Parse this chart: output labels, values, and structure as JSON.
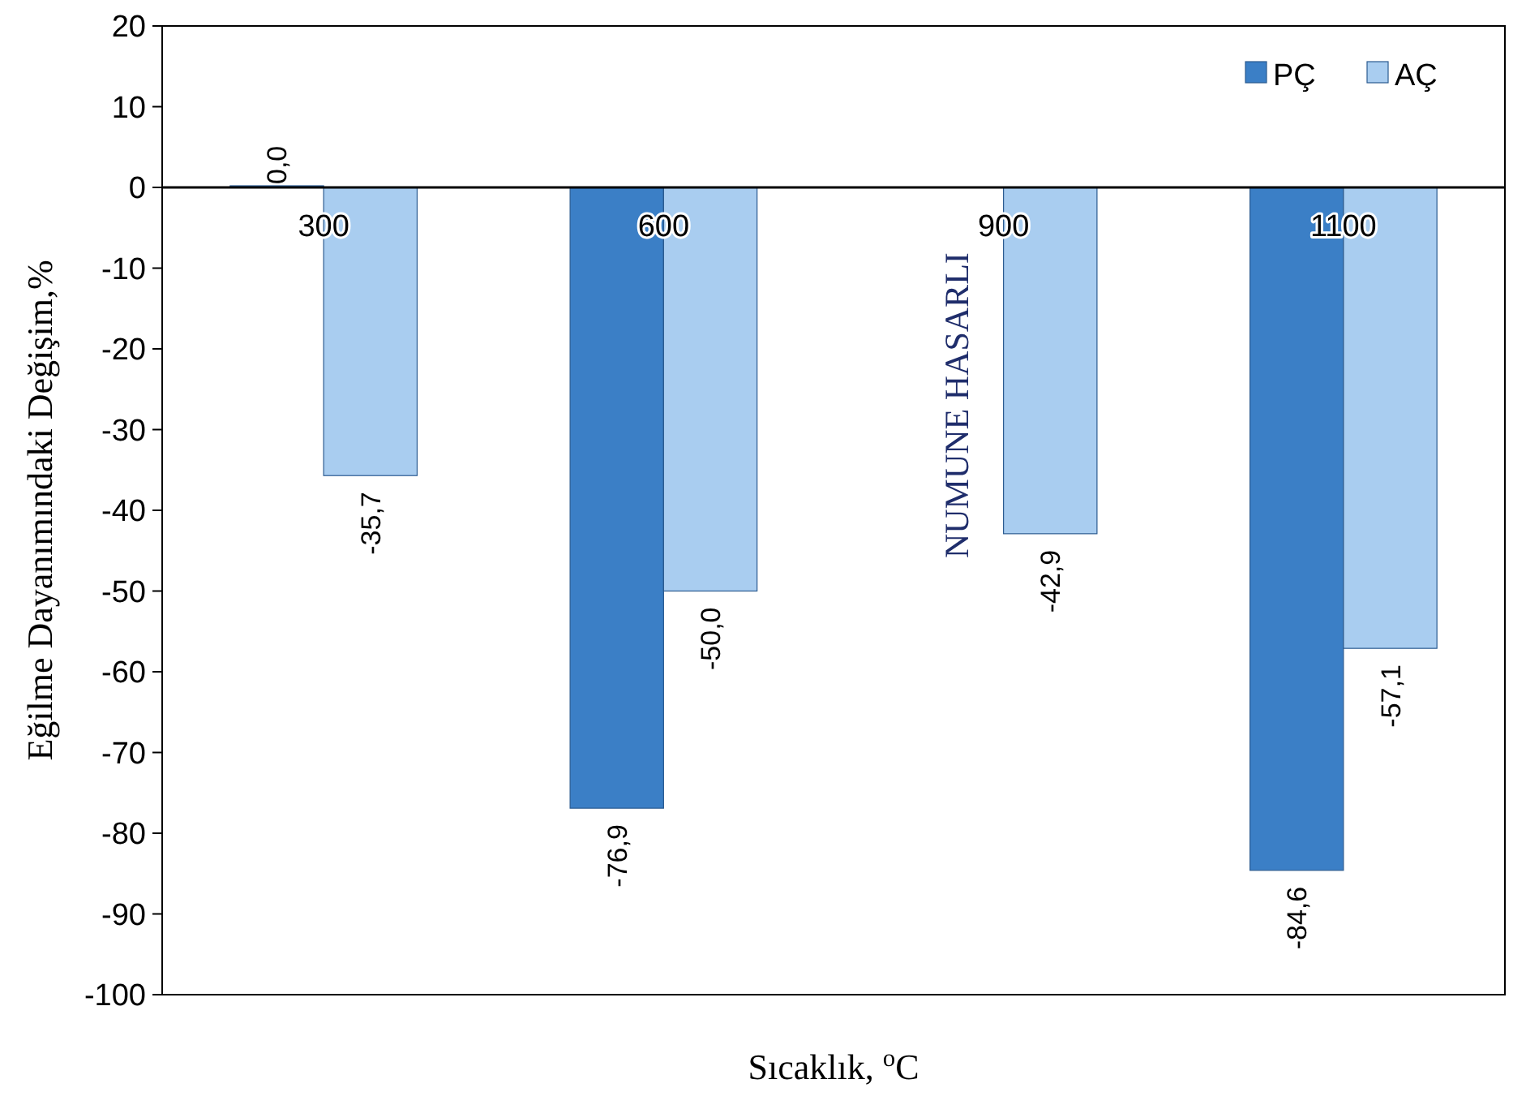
{
  "chart_data": {
    "type": "bar",
    "xlabel": "Sıcaklık, $^{o}$C",
    "ylabel": "Eğilme Dayanımındaki Değişim,%",
    "categories": [
      "300",
      "600",
      "900",
      "1100"
    ],
    "series": [
      {
        "name": "PÇ",
        "color": "#3b7fc6",
        "values": [
          0.0,
          -76.9,
          null,
          -84.6
        ],
        "value_labels": [
          "0,0",
          "-76,9",
          null,
          "-84,6"
        ]
      },
      {
        "name": "AÇ",
        "color": "#a9cdf0",
        "values": [
          -35.7,
          -50.0,
          -42.9,
          -57.1
        ],
        "value_labels": [
          "-35,7",
          "-50,0",
          "-42,9",
          "-57,1"
        ]
      }
    ],
    "annotations": [
      {
        "text": "NUMUNE HASARLI",
        "x": "900",
        "y": -27
      }
    ],
    "ylim": [
      -100,
      20
    ],
    "yticks": [
      -100,
      -90,
      -80,
      -70,
      -60,
      -50,
      -40,
      -30,
      -20,
      -10,
      0,
      10,
      20
    ],
    "grid": false,
    "legend": "top right"
  }
}
